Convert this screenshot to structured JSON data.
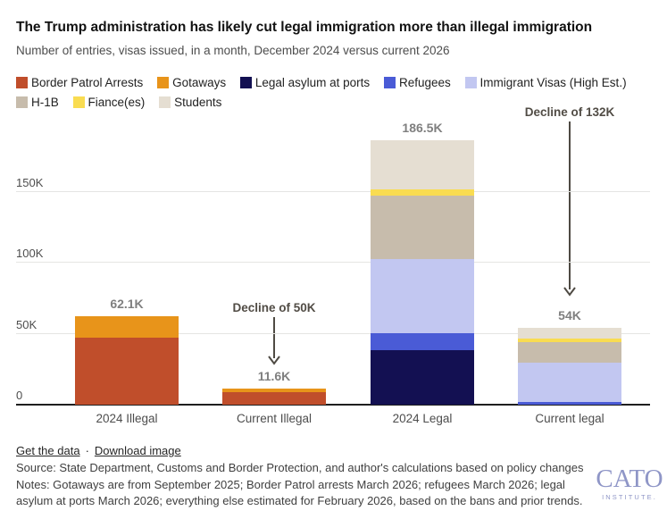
{
  "header": {
    "title": "The Trump administration has likely cut legal immigration more than illegal immigration",
    "subtitle": "Number of entries, visas issued, in a month, December 2024 versus current 2026"
  },
  "chart_data": {
    "type": "bar",
    "stacked": true,
    "title": "The Trump administration has likely cut legal immigration more than illegal immigration",
    "subtitle": "Number of entries, visas issued, in a month, December 2024 versus current 2026",
    "unit": "K (thousands of entries/visas per month)",
    "categories": [
      "2024 Illegal",
      "Current Illegal",
      "2024 Legal",
      "Current legal"
    ],
    "series": [
      {
        "name": "Border Patrol Arrests",
        "color": "#C04E2B",
        "values": [
          47.0,
          8.6,
          0,
          0
        ]
      },
      {
        "name": "Gotaways",
        "color": "#E8941A",
        "values": [
          15.1,
          3.0,
          0,
          0
        ]
      },
      {
        "name": "Legal asylum at ports",
        "color": "#131052",
        "values": [
          0,
          0,
          38.4,
          0
        ]
      },
      {
        "name": "Refugees",
        "color": "#4A5BD6",
        "values": [
          0,
          0,
          12.0,
          1.9
        ]
      },
      {
        "name": "Immigrant Visas (High Est.)",
        "color": "#C2C7F1",
        "values": [
          0,
          0,
          52.4,
          27.7
        ]
      },
      {
        "name": "H-1B",
        "color": "#C7BCAC",
        "values": [
          0,
          0,
          44.6,
          14.5
        ]
      },
      {
        "name": "Fiance(es)",
        "color": "#F9DC51",
        "values": [
          0,
          0,
          4.4,
          2.5
        ]
      },
      {
        "name": "Students",
        "color": "#E5DED2",
        "values": [
          0,
          0,
          34.7,
          7.4
        ]
      }
    ],
    "totals": [
      62.1,
      11.6,
      186.5,
      54
    ],
    "totals_labels": [
      "62.1K",
      "11.6K",
      "186.5K",
      "54K"
    ],
    "y_ticks": [
      {
        "label": "0",
        "value": 0
      },
      {
        "label": "50K",
        "value": 50
      },
      {
        "label": "100K",
        "value": 100
      },
      {
        "label": "150K",
        "value": 150
      }
    ],
    "ylim": [
      0,
      198
    ],
    "grid": "horizontal",
    "legend_position": "top",
    "annotations": [
      {
        "text": "Decline of 50K",
        "target": "Current Illegal"
      },
      {
        "text": "Decline of 132K",
        "target": "Current legal"
      }
    ]
  },
  "footer": {
    "links": [
      {
        "label": "Get the data"
      },
      {
        "label": "Download image"
      }
    ],
    "separator": "·",
    "source": "Source: State Department, Customs and Border Protection, and author's calculations based on policy changes",
    "notes": "Notes: Gotaways are from September 2025; Border Patrol arrests March 2026; refugees March 2026; legal asylum at ports March 2026; everything else estimated for February 2026, based on the bans and prior trends.",
    "logo": {
      "name": "CATO",
      "subtitle": "INSTITUTE."
    }
  }
}
